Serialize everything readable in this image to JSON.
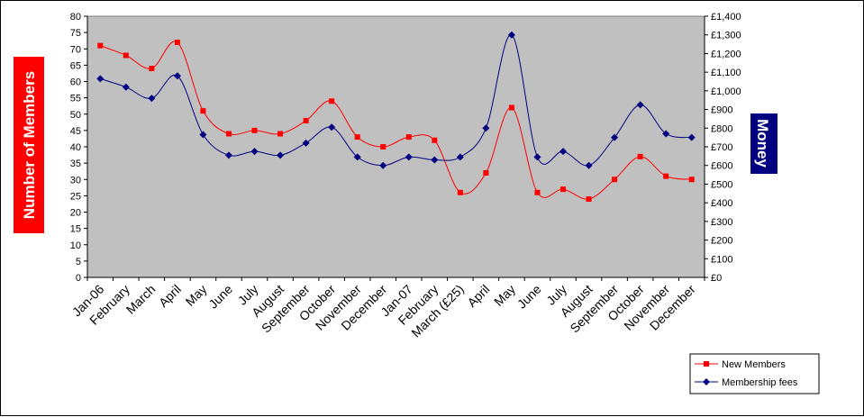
{
  "chart_data": {
    "type": "line",
    "categories": [
      "Jan-06",
      "February",
      "March",
      "April",
      "May",
      "June",
      "July",
      "August",
      "September",
      "October",
      "November",
      "December",
      "Jan-07",
      "February",
      "March (£25)",
      "April",
      "May",
      "June",
      "July",
      "August",
      "September",
      "October",
      "November",
      "December"
    ],
    "ylabel": "Number of Members",
    "y2label": "Money",
    "ylim": [
      0,
      80
    ],
    "y2lim": [
      0,
      1400
    ],
    "y_ticks": [
      "0",
      "5",
      "10",
      "15",
      "20",
      "25",
      "30",
      "35",
      "40",
      "45",
      "50",
      "55",
      "60",
      "65",
      "70",
      "75",
      "80"
    ],
    "y2_ticks": [
      "£0",
      "£100",
      "£200",
      "£300",
      "£400",
      "£500",
      "£600",
      "£700",
      "£800",
      "£900",
      "£1,000",
      "£1,100",
      "£1,200",
      "£1,300",
      "£1,400"
    ],
    "series": [
      {
        "name": "New Members",
        "axis": "left",
        "color": "#ff0000",
        "marker": "square",
        "values": [
          71,
          68,
          64,
          72,
          51,
          44,
          45,
          44,
          48,
          54,
          43,
          40,
          43,
          42,
          26,
          32,
          52,
          26,
          27,
          24,
          30,
          37,
          31,
          30
        ]
      },
      {
        "name": "Membership fees",
        "axis": "right",
        "color": "#000080",
        "marker": "diamond",
        "values": [
          1065,
          1020,
          960,
          1080,
          765,
          655,
          675,
          655,
          720,
          805,
          645,
          600,
          645,
          630,
          645,
          800,
          1300,
          645,
          675,
          600,
          750,
          925,
          770,
          750
        ]
      }
    ],
    "grid": false,
    "plot_background": "#c0c0c0",
    "legend_position": "bottom-right"
  }
}
